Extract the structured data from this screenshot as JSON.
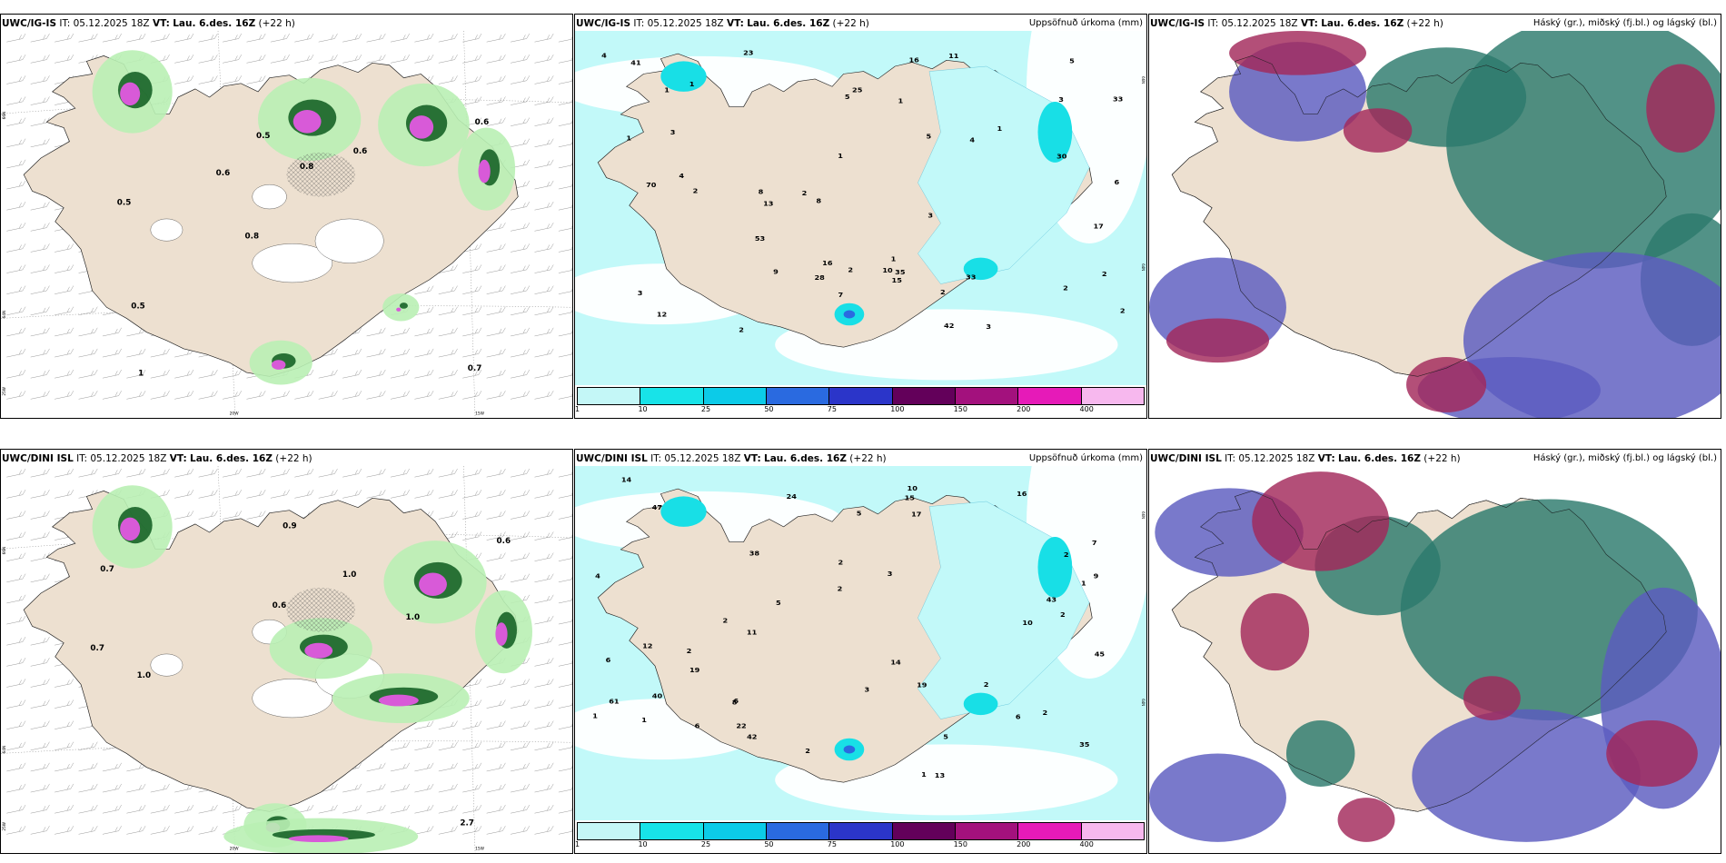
{
  "panels": [
    {
      "id": "p1",
      "model": "UWC/IG-IS",
      "it_label": "IT:",
      "it_value": "05.12.2025 18Z",
      "vt_label": "VT:",
      "vt_value": "Lau. 6.des. 16Z",
      "lead": "(+22 h)",
      "right_title": "",
      "lat_labels": [
        "66N",
        "64N",
        "25W"
      ],
      "lon_labels": [
        "20W",
        "15W"
      ],
      "values": [
        "0.7",
        "0.5",
        "0.6",
        "0.8",
        "0.6",
        "1",
        "0.5",
        "0.8",
        "0.5",
        "0.6"
      ]
    },
    {
      "id": "p2",
      "model": "UWC/IG-IS",
      "it_label": "IT:",
      "it_value": "05.12.2025 18Z",
      "vt_label": "VT:",
      "vt_value": "Lau. 6.des. 16Z",
      "lead": "(+22 h)",
      "right_title": "Uppsöfnuð úrkoma (mm)",
      "lat_labels": [
        "66N",
        "64N"
      ],
      "lon_labels": [],
      "values": [
        "2",
        "2",
        "1",
        "16",
        "33",
        "4",
        "3",
        "2",
        "1",
        "2",
        "4",
        "8",
        "11",
        "10",
        "16",
        "12",
        "5",
        "3",
        "9",
        "23",
        "33",
        "42",
        "53",
        "41",
        "28",
        "30",
        "25",
        "17",
        "13",
        "15",
        "35",
        "6",
        "5",
        "3",
        "2",
        "4",
        "1",
        "2",
        "1",
        "2",
        "1",
        "70",
        "1",
        "8",
        "7",
        "5",
        "3",
        "2",
        "1",
        "3"
      ]
    },
    {
      "id": "p3",
      "model": "UWC/IG-IS",
      "it_label": "IT:",
      "it_value": "05.12.2025 18Z",
      "vt_label": "VT:",
      "vt_value": "Lau. 6.des. 16Z",
      "lead": "(+22 h)",
      "right_title": "Háský (gr.), miðský (fj.bl.) og lágský (bl.)",
      "lat_labels": [],
      "lon_labels": [],
      "values": []
    },
    {
      "id": "p4",
      "model": "UWC/DINI ISL",
      "it_label": "IT:",
      "it_value": "05.12.2025 18Z",
      "vt_label": "VT:",
      "vt_value": "Lau. 6.des. 16Z",
      "lead": "(+22 h)",
      "right_title": "",
      "lat_labels": [
        "66N",
        "64N",
        "25W"
      ],
      "lon_labels": [
        "20W",
        "15W"
      ],
      "values": [
        "0.7",
        "0.9",
        "1.0",
        "0.6",
        "0.7",
        "2.7",
        "1.0",
        "1.0",
        "0.6"
      ]
    },
    {
      "id": "p5",
      "model": "UWC/DINI ISL",
      "it_label": "IT:",
      "it_value": "05.12.2025 18Z",
      "vt_label": "VT:",
      "vt_value": "Lau. 6.des. 16Z",
      "lead": "(+22 h)",
      "right_title": "Uppsöfnuð úrkoma (mm)",
      "lat_labels": [
        "66N",
        "64N"
      ],
      "lon_labels": [],
      "values": [
        "4",
        "5",
        "2",
        "19",
        "40",
        "2",
        "2",
        "1",
        "3",
        "2",
        "1",
        "2",
        "5",
        "6",
        "1",
        "2",
        "13",
        "9",
        "6",
        "10",
        "11",
        "14",
        "43",
        "38",
        "45",
        "47",
        "42",
        "22",
        "35",
        "19",
        "24",
        "17",
        "15",
        "14",
        "5",
        "3",
        "6",
        "7",
        "2",
        "10",
        "8",
        "6",
        "12",
        "16",
        "2",
        "61",
        "2",
        "1"
      ]
    },
    {
      "id": "p6",
      "model": "UWC/DINI ISL",
      "it_label": "IT:",
      "it_value": "05.12.2025 18Z",
      "vt_label": "VT:",
      "vt_value": "Lau. 6.des. 16Z",
      "lead": "(+22 h)",
      "right_title": "Háský (gr.), miðský (fj.bl.) og lágský (bl.)",
      "lat_labels": [],
      "lon_labels": [],
      "values": []
    }
  ],
  "precip_legend": {
    "labels": [
      "1",
      "10",
      "25",
      "50",
      "75",
      "100",
      "150",
      "200",
      "400"
    ],
    "colors": [
      "#c4f7f7",
      "#18e3e8",
      "#0ccbe8",
      "#2a6ae0",
      "#2b35c9",
      "#63005a",
      "#a3117d",
      "#e61ab8",
      "#f7b8ee"
    ]
  },
  "colors": {
    "land": "#ede0d0",
    "precip_light": "#c2f9f9",
    "precip_mid": "#18dfe6",
    "cloud_high": "#2c7a6c",
    "cloud_mid": "#5b5bc0",
    "cloud_low": "#a2285a",
    "green_light": "#b9efb4",
    "green_dark": "#0d5a1e",
    "magenta": "#d85ad8"
  }
}
